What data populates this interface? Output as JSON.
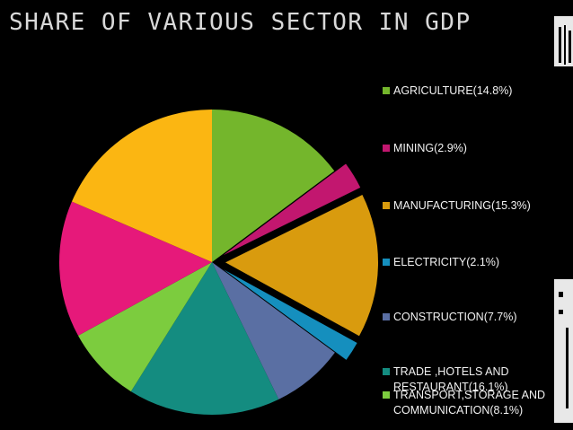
{
  "slide": {
    "title": "SHARE OF VARIOUS SECTOR IN GDP"
  },
  "chart_data": {
    "type": "pie",
    "categories": [
      "AGRICULTURE",
      "MINING",
      "MANUFACTURING",
      "ELECTRICITY",
      "CONSTRUCTION",
      "TRADE ,HOTELS AND RESTAURANT",
      "TRANSPORT,STORAGE AND COMMUNICATION",
      "",
      ""
    ],
    "values": [
      14.8,
      2.9,
      15.3,
      2.1,
      7.7,
      16.1,
      8.1,
      14.5,
      18.5
    ],
    "colors": [
      "#74b62c",
      "#c2176f",
      "#d99b0e",
      "#158fbe",
      "#5a6fa3",
      "#148c80",
      "#7ccc3e",
      "#e6197a",
      "#fbb612"
    ],
    "exploded": [
      false,
      true,
      true,
      true,
      false,
      false,
      false,
      false,
      false
    ],
    "legend": [
      {
        "label": "AGRICULTURE(14.8%)",
        "color": "#74b62c"
      },
      {
        "label": "MINING(2.9%)",
        "color": "#c2176f"
      },
      {
        "label": "MANUFACTURING(15.3%)",
        "color": "#d99b0e"
      },
      {
        "label": "ELECTRICITY(2.1%)",
        "color": "#158fbe"
      },
      {
        "label": "CONSTRUCTION(7.7%)",
        "color": "#5a6fa3"
      },
      {
        "label": "TRADE ,HOTELS AND RESTAURANT(16.1%)",
        "color": "#148c80"
      },
      {
        "label": "TRANSPORT,STORAGE AND COMMUNICATION(8.1%)",
        "color": "#7ccc3e"
      }
    ],
    "legend_position": "right"
  }
}
